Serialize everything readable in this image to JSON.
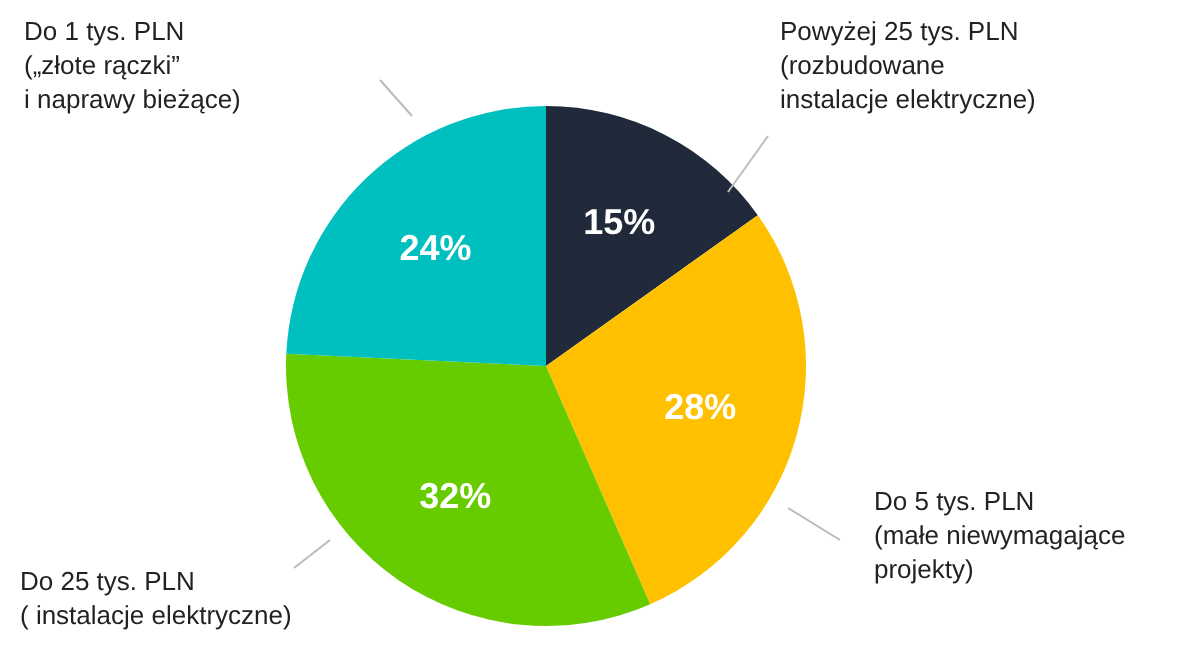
{
  "chart_data": {
    "type": "pie",
    "categories": [
      "Powyżej 25 tys. PLN\n(rozbudowane\ninstalacje elektryczne)",
      "Do 5 tys. PLN\n(małe niewymagające\nprojekty)",
      "Do 25 tys. PLN\n( instalacje elektryczne)",
      "Do 1 tys. PLN\n(„złote rączki”\ni naprawy bieżące)"
    ],
    "values": [
      15,
      28,
      32,
      24
    ],
    "value_labels": [
      "15%",
      "28%",
      "32%",
      "24%"
    ],
    "colors": [
      "#212a3a",
      "#ffc000",
      "#66cc00",
      "#00bfbf"
    ]
  }
}
